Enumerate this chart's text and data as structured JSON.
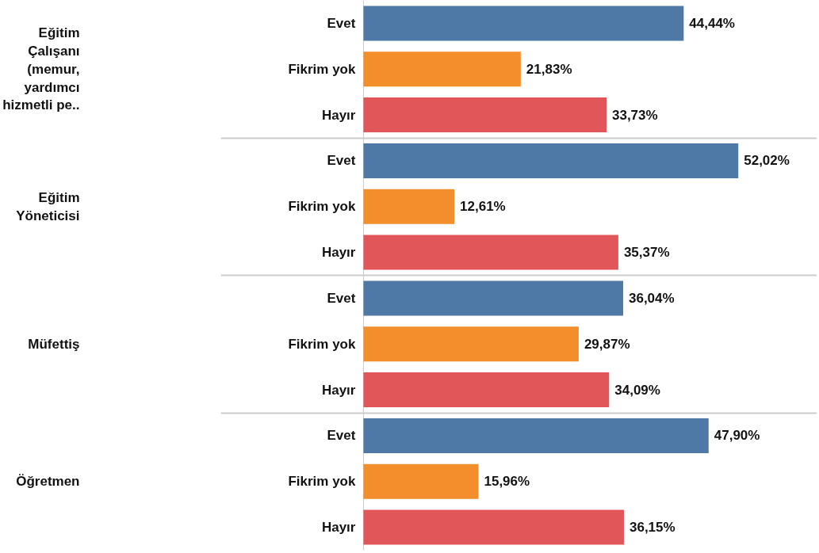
{
  "chart_data": {
    "type": "bar",
    "orientation": "horizontal",
    "categories": [
      "Eğitim Çalışanı (memur, yardımcı hizmetli pe..",
      "Eğitim Yöneticisi",
      "Müfettiş",
      "Öğretmen"
    ],
    "series": [
      {
        "name": "Evet",
        "color": "#4e79a7",
        "values": [
          44.44,
          52.02,
          36.04,
          47.9
        ],
        "value_labels": [
          "44,44%",
          "52,02%",
          "36,04%",
          "47,90%"
        ]
      },
      {
        "name": "Fikrim yok",
        "color": "#f28e2b",
        "values": [
          21.83,
          12.61,
          29.87,
          15.96
        ],
        "value_labels": [
          "21,83%",
          "12,61%",
          "29,87%",
          "15,96%"
        ]
      },
      {
        "name": "Hayır",
        "color": "#e15759",
        "values": [
          33.73,
          35.37,
          34.09,
          36.15
        ],
        "value_labels": [
          "33,73%",
          "35,37%",
          "34,09%",
          "36,15%"
        ]
      }
    ],
    "grid": true
  }
}
